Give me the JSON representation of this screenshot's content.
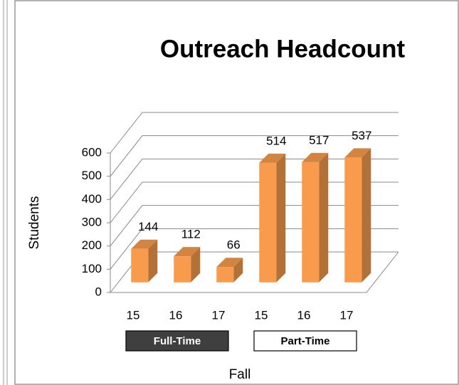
{
  "chart_data": {
    "type": "bar3d",
    "title": "Outreach Headcount",
    "categories": [
      "15",
      "16",
      "17",
      "15",
      "16",
      "17"
    ],
    "groups": [
      "Full-Time",
      "Part-Time"
    ],
    "values": [
      144,
      112,
      66,
      514,
      517,
      537
    ],
    "color": "#f89b4d",
    "ylabel": "Students",
    "xlabel": "Fall",
    "ylim": [
      0,
      600
    ],
    "yticks": [
      0,
      100,
      200,
      300,
      400,
      500,
      600
    ],
    "grid": true
  }
}
